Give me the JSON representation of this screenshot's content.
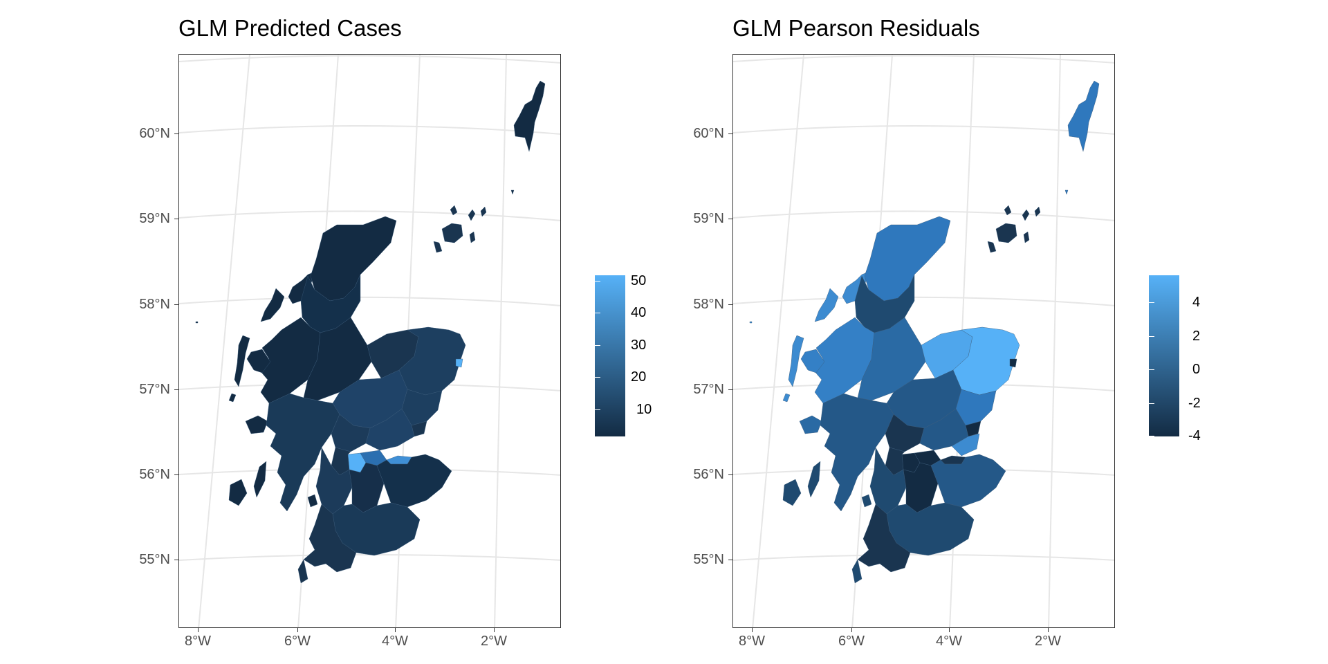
{
  "panels": [
    {
      "title": "GLM Predicted Cases",
      "lat_labels": [
        "60°N",
        "59°N",
        "58°N",
        "57°N",
        "56°N",
        "55°N"
      ],
      "lon_labels": [
        "8°W",
        "6°W",
        "4°W",
        "2°W"
      ],
      "legend": {
        "ticks": [
          "50",
          "40",
          "30",
          "20",
          "10"
        ],
        "color_low": "#132B43",
        "color_high": "#56B1F7"
      }
    },
    {
      "title": "GLM Pearson Residuals",
      "lat_labels": [
        "60°N",
        "59°N",
        "58°N",
        "57°N",
        "56°N",
        "55°N"
      ],
      "lon_labels": [
        "8°W",
        "6°W",
        "4°W",
        "2°W"
      ],
      "legend": {
        "ticks": [
          "4",
          "2",
          "0",
          "-2",
          "-4"
        ],
        "color_low": "#132B43",
        "color_high": "#56B1F7"
      }
    }
  ],
  "colors": {
    "grid": "#e6e6e6",
    "frame": "#333333",
    "axis_text": "#4d4d4d",
    "fill_dark": "#132B43",
    "fill_mid": "#1f4a70",
    "fill_mid2": "#2a6aa4",
    "fill_light": "#3f8fd6",
    "fill_bright": "#56B1F7"
  }
}
